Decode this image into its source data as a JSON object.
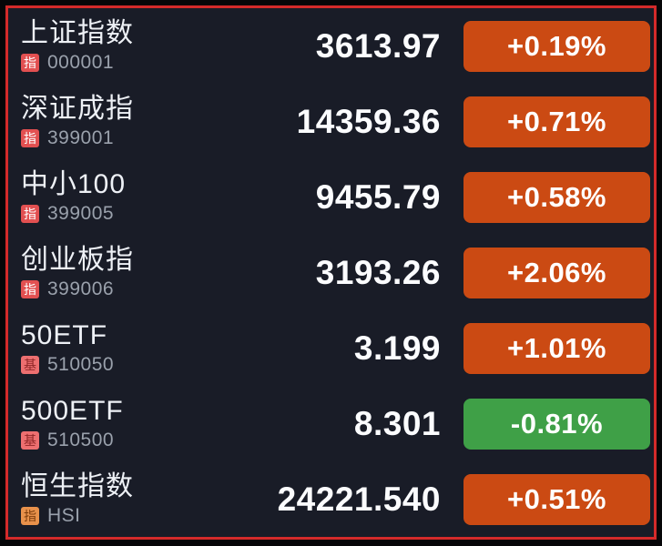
{
  "colors": {
    "background": "#191c27",
    "frame_border": "#d42a2a",
    "up_badge": "#cb4a13",
    "down_badge": "#3fa047",
    "cn_index_badge_bg": "#e25051",
    "fund_badge_bg": "#ed6f70",
    "fund_badge_text": "#8f2626",
    "hk_index_badge_bg": "#e8914b",
    "hk_index_badge_text": "#7c3c0c"
  },
  "rows": [
    {
      "name": "上证指数",
      "badge": "指",
      "badge_type": "index-cn",
      "code": "000001",
      "price": "3613.97",
      "change": "+0.19%",
      "direction": "up"
    },
    {
      "name": "深证成指",
      "badge": "指",
      "badge_type": "index-cn",
      "code": "399001",
      "price": "14359.36",
      "change": "+0.71%",
      "direction": "up"
    },
    {
      "name": "中小100",
      "badge": "指",
      "badge_type": "index-cn",
      "code": "399005",
      "price": "9455.79",
      "change": "+0.58%",
      "direction": "up"
    },
    {
      "name": "创业板指",
      "badge": "指",
      "badge_type": "index-cn",
      "code": "399006",
      "price": "3193.26",
      "change": "+2.06%",
      "direction": "up"
    },
    {
      "name": "50ETF",
      "badge": "基",
      "badge_type": "fund",
      "code": "510050",
      "price": "3.199",
      "change": "+1.01%",
      "direction": "up"
    },
    {
      "name": "500ETF",
      "badge": "基",
      "badge_type": "fund",
      "code": "510500",
      "price": "8.301",
      "change": "-0.81%",
      "direction": "down"
    },
    {
      "name": "恒生指数",
      "badge": "指",
      "badge_type": "index-hk",
      "code": "HSI",
      "price": "24221.540",
      "change": "+0.51%",
      "direction": "up"
    }
  ]
}
